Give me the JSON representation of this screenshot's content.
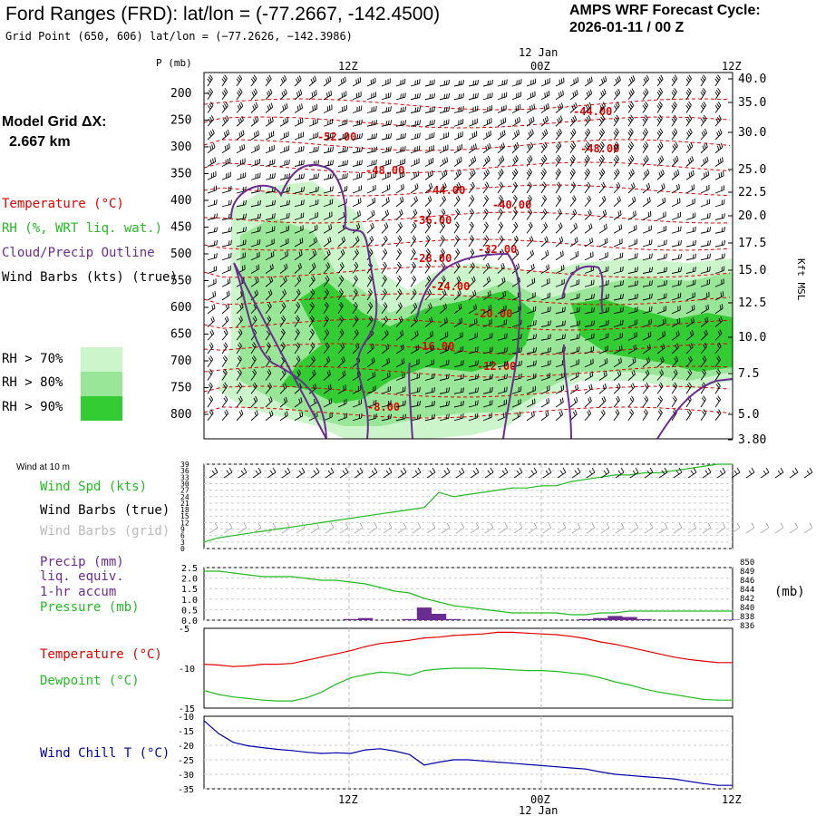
{
  "header": {
    "title": "Ford Ranges (FRD):  lat/lon = (-77.2667, -142.4500)",
    "grid_point": "Grid Point (650, 606) lat/lon = (−77.2626, −142.3986)",
    "cycle_line1": "AMPS WRF Forecast Cycle:",
    "cycle_line2": "2026-01-11 / 00  Z"
  },
  "model_grid": {
    "label": "Model Grid ΔX:",
    "value": "2.667 km"
  },
  "time_axis": {
    "ticks": [
      "12Z",
      "00Z",
      "12Z"
    ],
    "date_label": "12 Jan"
  },
  "legend": {
    "temperature": "Temperature (°C)",
    "rh": "RH (%, WRT liq. wat.)",
    "cloud": "Cloud/Precip Outline",
    "wind": "Wind Barbs (kts) (true)",
    "rh70": "RH > 70%",
    "rh80": "RH > 80%",
    "rh90": "RH > 90%"
  },
  "colors": {
    "rh70": "#ccf5cc",
    "rh80": "#99e699",
    "rh90": "#33cc33",
    "temp": "#e00000",
    "cloud": "#6a2c91",
    "wind_spd": "#22bb22",
    "precip": "#6a2c91",
    "dewpoint": "#22bb22",
    "wind_chill": "#0000aa"
  },
  "chart_data": [
    {
      "type": "heatmap",
      "name": "vertical-cross-section",
      "ylabel_left": "P (mb)",
      "ylabel_right": "Kft MSL",
      "pressure_ticks": [
        200,
        250,
        300,
        350,
        400,
        450,
        500,
        550,
        600,
        650,
        700,
        750,
        800
      ],
      "height_ticks": [
        "40.0",
        "35.0",
        "30.0",
        "25.0",
        "22.5",
        "20.0",
        "17.5",
        "15.0",
        "12.5",
        "10.0",
        "7.5",
        "5.0",
        "3.80"
      ],
      "isotherm_labels": [
        "-44.00",
        "-52.00",
        "-48.00",
        "-48.00",
        "-44.00",
        "-40.00",
        "-36.00",
        "-32.00",
        "-28.00",
        "-24.00",
        "-20.00",
        "-16.00",
        "-12.00",
        "-8.00"
      ]
    },
    {
      "type": "line",
      "name": "surface-wind",
      "title": "Wind at 10 m",
      "series_label": "Wind Spd (kts)",
      "barbs_true_label": "Wind Barbs (true)",
      "barbs_grid_label": "Wind Barbs (grid)",
      "ylim": [
        0,
        39
      ],
      "y_ticks": [
        0,
        3,
        6,
        9,
        12,
        15,
        18,
        21,
        24,
        27,
        30,
        33,
        36,
        39
      ],
      "x": [
        0,
        1,
        2,
        3,
        4,
        5,
        6,
        7,
        8,
        9,
        10,
        11,
        12,
        13,
        14,
        15,
        16,
        17,
        18,
        19,
        20,
        21,
        22,
        23,
        24,
        25,
        26,
        27,
        28,
        29,
        30,
        31,
        32,
        33,
        34,
        35,
        36
      ],
      "values": [
        3,
        5,
        6,
        7,
        8,
        9,
        10,
        11,
        12,
        13,
        14,
        15,
        16,
        17,
        18,
        19,
        26,
        24,
        25,
        26,
        27,
        28,
        28,
        29,
        29,
        31,
        32,
        33,
        34,
        34,
        35,
        35,
        36,
        37,
        38,
        39,
        39
      ]
    },
    {
      "type": "bar",
      "name": "precip-pressure",
      "precip_label": "Precip (mm)",
      "precip_label2": "liq. equiv.",
      "precip_label3": "1-hr accum",
      "pressure_label": "Pressure (mb)",
      "pressure_unit": "(mb)",
      "precip_ylim": [
        0,
        2.5
      ],
      "precip_ticks": [
        "0.0",
        "0.5",
        "1.0",
        "1.5",
        "2.0",
        "2.5"
      ],
      "pressure_ticks": [
        "850",
        "849",
        "846",
        "844",
        "842",
        "840",
        "838",
        "836"
      ],
      "precip_x": [
        10,
        11,
        14,
        15,
        16,
        17,
        26,
        27,
        28,
        29,
        30,
        36
      ],
      "precip_values": [
        0.05,
        0.1,
        0.05,
        0.6,
        0.3,
        0.05,
        0.05,
        0.1,
        0.2,
        0.15,
        0.05,
        0.02
      ],
      "pressure_x": [
        0,
        1,
        2,
        3,
        4,
        5,
        6,
        7,
        8,
        9,
        10,
        11,
        12,
        13,
        14,
        15,
        16,
        17,
        18,
        19,
        20,
        21,
        22,
        23,
        24,
        25,
        26,
        27,
        28,
        29,
        30,
        31,
        32,
        33,
        34,
        35,
        36
      ],
      "pressure_values": [
        849.5,
        849.5,
        849,
        848.5,
        848,
        848,
        848,
        847.5,
        847,
        847,
        846.5,
        846,
        845,
        844,
        843.5,
        842,
        841,
        840,
        839.5,
        839,
        838.5,
        838,
        838,
        838,
        838,
        837.5,
        837.5,
        838,
        838,
        838.5,
        838.5,
        838.5,
        838.5,
        838.5,
        838.5,
        838.5,
        838.5
      ]
    },
    {
      "type": "line",
      "name": "temp-dewpoint",
      "temp_label": "Temperature (°C)",
      "dew_label": "Dewpoint (°C)",
      "ylim": [
        -15,
        -5
      ],
      "y_ticks": [
        "-5",
        "-10",
        "-15"
      ],
      "x": [
        0,
        1,
        2,
        3,
        4,
        5,
        6,
        7,
        8,
        9,
        10,
        11,
        12,
        13,
        14,
        15,
        16,
        17,
        18,
        19,
        20,
        21,
        22,
        23,
        24,
        25,
        26,
        27,
        28,
        29,
        30,
        31,
        32,
        33,
        34,
        35,
        36
      ],
      "temperature": [
        -9.5,
        -9.6,
        -9.8,
        -9.7,
        -9.5,
        -9.5,
        -9.4,
        -9.0,
        -8.6,
        -8.2,
        -7.8,
        -7.3,
        -6.9,
        -6.7,
        -6.5,
        -6.2,
        -6.1,
        -5.9,
        -5.8,
        -5.7,
        -5.5,
        -5.5,
        -5.6,
        -5.7,
        -5.8,
        -6.0,
        -6.3,
        -6.7,
        -7.0,
        -7.4,
        -7.8,
        -8.2,
        -8.6,
        -8.9,
        -9.1,
        -9.3,
        -9.3
      ],
      "dewpoint": [
        -12.8,
        -13.3,
        -13.6,
        -13.8,
        -14.0,
        -14.1,
        -14.1,
        -13.7,
        -13.0,
        -12.0,
        -11.2,
        -10.8,
        -10.5,
        -10.6,
        -10.9,
        -10.3,
        -10.1,
        -10.0,
        -10.0,
        -10.0,
        -10.1,
        -10.2,
        -10.3,
        -10.3,
        -10.4,
        -10.6,
        -10.8,
        -11.2,
        -11.7,
        -12.1,
        -12.6,
        -13.0,
        -13.3,
        -13.6,
        -13.9,
        -14.0,
        -14.0
      ]
    },
    {
      "type": "line",
      "name": "wind-chill",
      "label": "Wind Chill T (°C)",
      "ylim": [
        -35,
        -10
      ],
      "y_ticks": [
        "-10",
        "-15",
        "-20",
        "-25",
        "-30",
        "-35"
      ],
      "x": [
        0,
        1,
        2,
        3,
        4,
        5,
        6,
        7,
        8,
        9,
        10,
        11,
        12,
        13,
        14,
        15,
        16,
        17,
        18,
        19,
        20,
        21,
        22,
        23,
        24,
        25,
        26,
        27,
        28,
        29,
        30,
        31,
        32,
        33,
        34,
        35,
        36
      ],
      "values": [
        -11.5,
        -16,
        -19,
        -20.2,
        -20.8,
        -21.4,
        -21.8,
        -22.4,
        -22.8,
        -22.6,
        -22.8,
        -21.6,
        -21.2,
        -22,
        -23.2,
        -26.8,
        -25.8,
        -25,
        -25,
        -25.4,
        -25.8,
        -26.2,
        -26.6,
        -27,
        -27.4,
        -27.8,
        -28.2,
        -29.2,
        -30,
        -30.4,
        -30.8,
        -31.2,
        -31.6,
        -32.4,
        -33.2,
        -33.8,
        -33.8
      ]
    }
  ]
}
